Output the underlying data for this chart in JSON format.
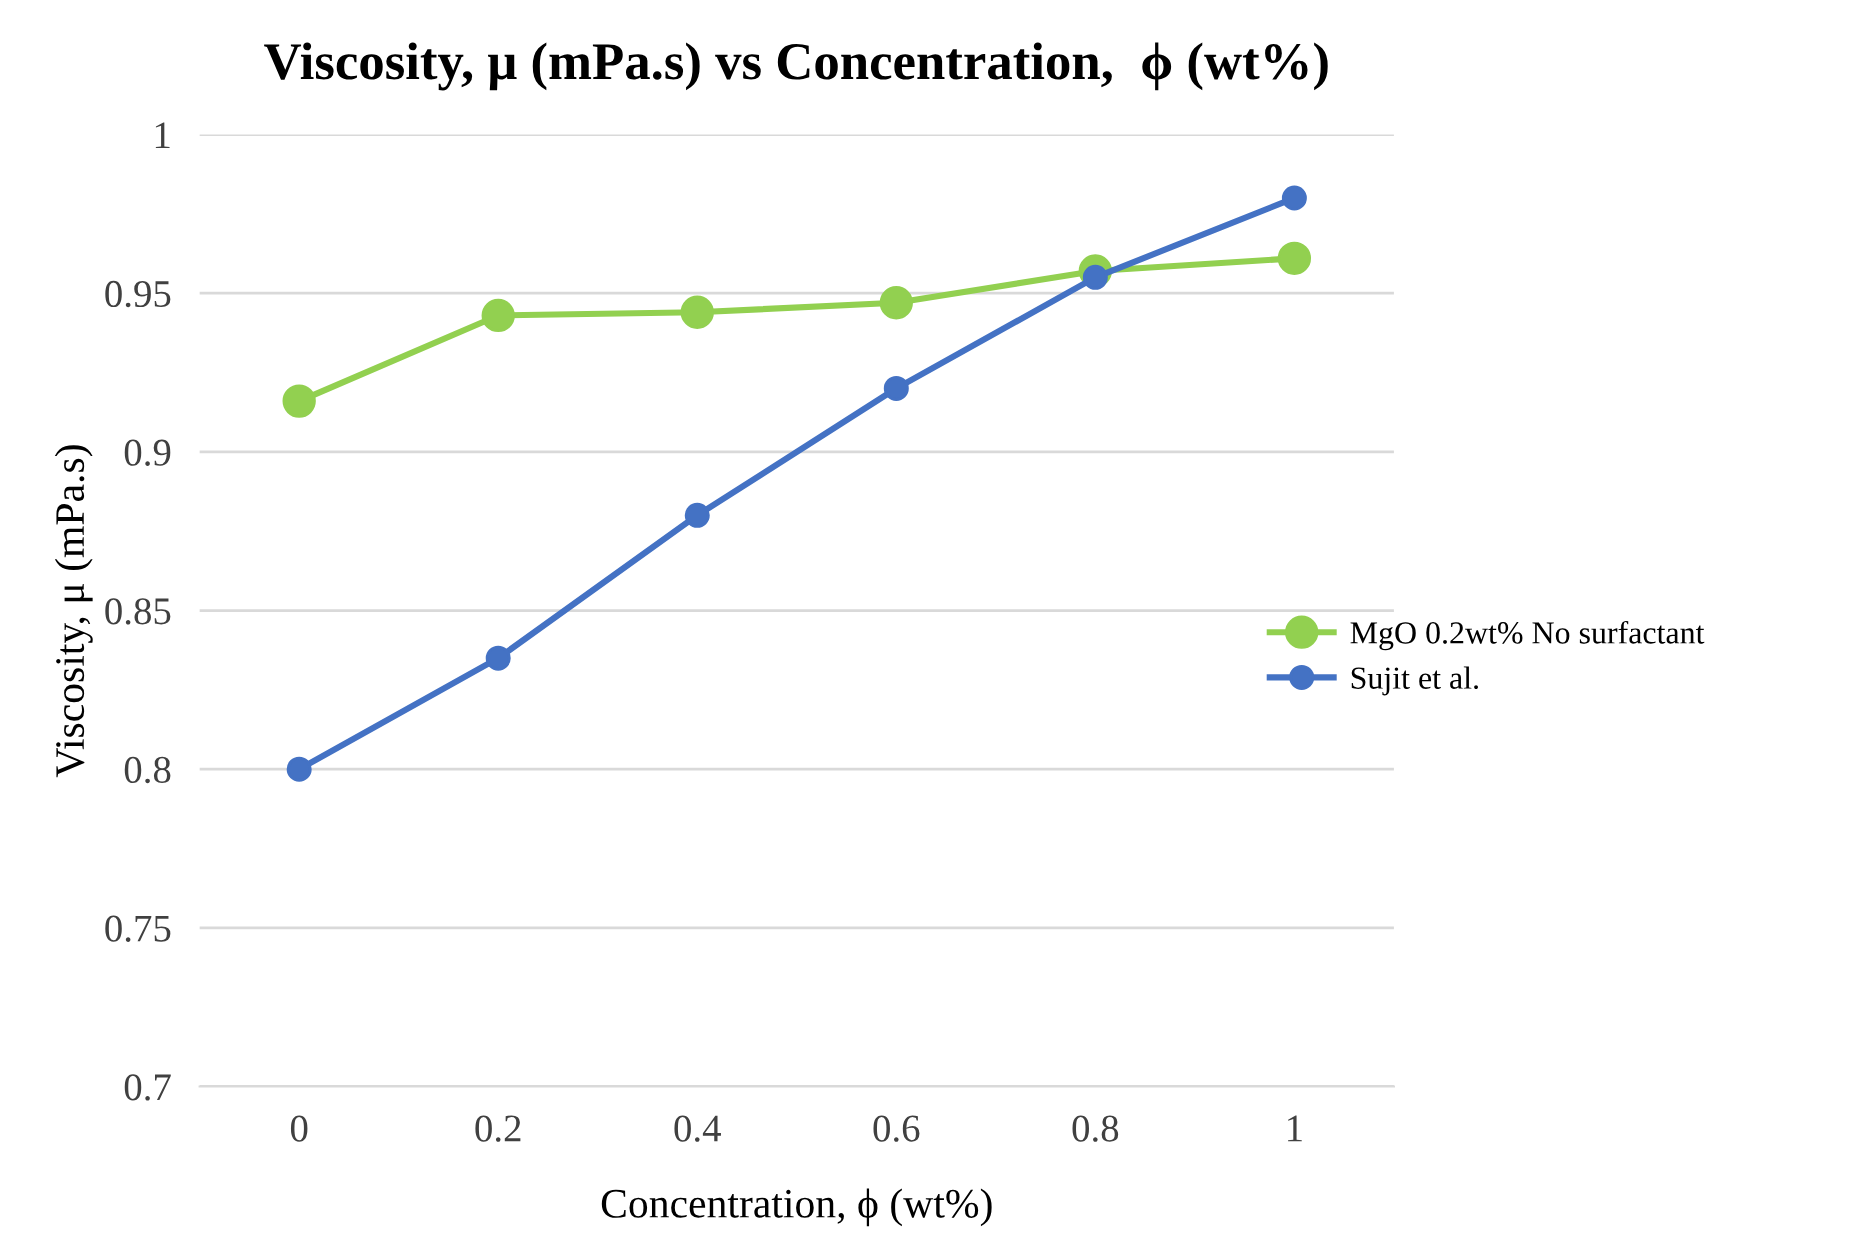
{
  "chart_data": {
    "type": "line",
    "title": "Viscosity, μ (mPa.s) vs Concentration,  ϕ (wt%)",
    "xlabel": "Concentration, ϕ (wt%)",
    "ylabel": "Viscosity, μ (mPa.s)",
    "categories": [
      "0",
      "0.2",
      "0.4",
      "0.6",
      "0.8",
      "1"
    ],
    "series": [
      {
        "name": "MgO 0.2wt% No surfactant",
        "color": "#92d050",
        "values": [
          0.916,
          0.943,
          0.944,
          0.947,
          0.957,
          0.961
        ]
      },
      {
        "name": "Sujit et al.",
        "color": "#4472c4",
        "values": [
          0.8,
          0.835,
          0.88,
          0.92,
          0.955,
          0.98
        ]
      }
    ],
    "ylim": [
      0.7,
      1
    ],
    "yticks": [
      0.7,
      0.75,
      0.8,
      0.85,
      0.9,
      0.95,
      1
    ],
    "grid": "y",
    "legend": "right",
    "marker": "circle",
    "line_style": "solid"
  }
}
